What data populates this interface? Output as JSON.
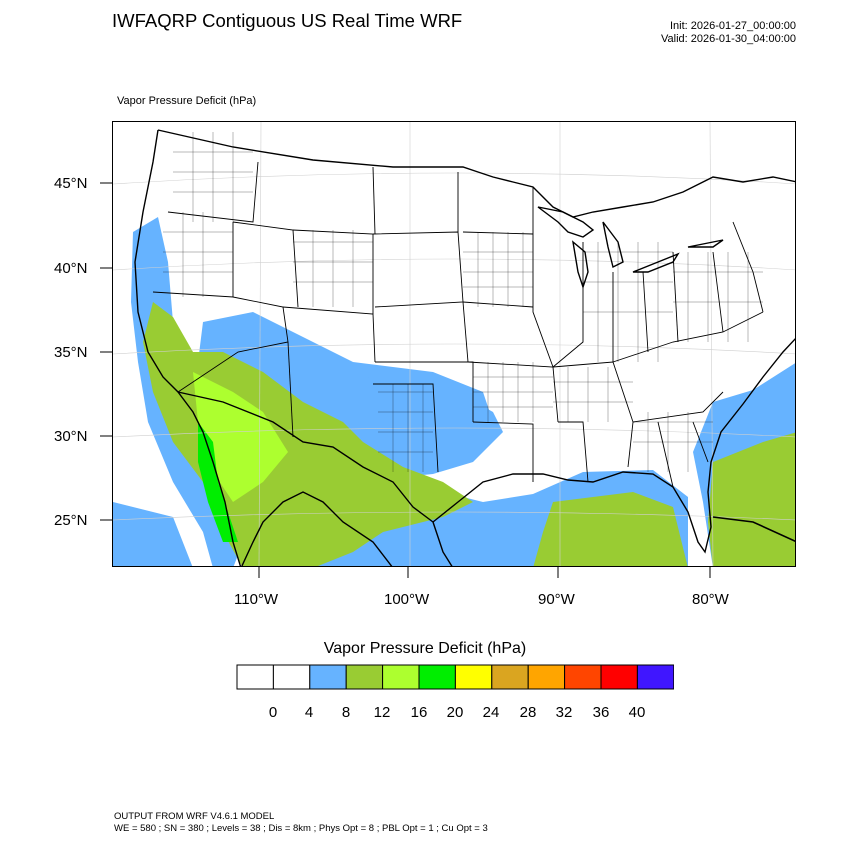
{
  "header": {
    "title": "IWFAQRP Contiguous US Real Time WRF",
    "init": "Init: 2026-01-27_00:00:00",
    "valid": "Valid: 2026-01-30_04:00:00"
  },
  "map": {
    "field_label": "Vapor Pressure Deficit   (hPa)",
    "lat_labels": [
      "45°N",
      "40°N",
      "35°N",
      "30°N",
      "25°N"
    ],
    "lon_labels": [
      "110°W",
      "100°W",
      "90°W",
      "80°W"
    ],
    "colors": {
      "land": "#ffffff",
      "c4_8": "#66b3ff",
      "c8_12": "#99cc33",
      "c12_16": "#adff2f",
      "c16_20": "#00ee00",
      "boundary": "#000000"
    }
  },
  "colorbar": {
    "title": "Vapor Pressure Deficit  (hPa)",
    "colors": [
      "#ffffff",
      "#ffffff",
      "#66b3ff",
      "#99cc33",
      "#adff2f",
      "#00ee00",
      "#ffff00",
      "#daa520",
      "#ffa500",
      "#ff4500",
      "#ff0000",
      "#4016ff"
    ],
    "tick_labels": [
      "0",
      "4",
      "8",
      "12",
      "16",
      "20",
      "24",
      "28",
      "32",
      "36",
      "40"
    ]
  },
  "footer": {
    "line1": "OUTPUT FROM WRF V4.6.1 MODEL",
    "line2": "WE = 580 ; SN = 380 ; Levels = 38 ; Dis = 8km ; Phys Opt = 8 ; PBL Opt = 1 ; Cu Opt = 3"
  }
}
